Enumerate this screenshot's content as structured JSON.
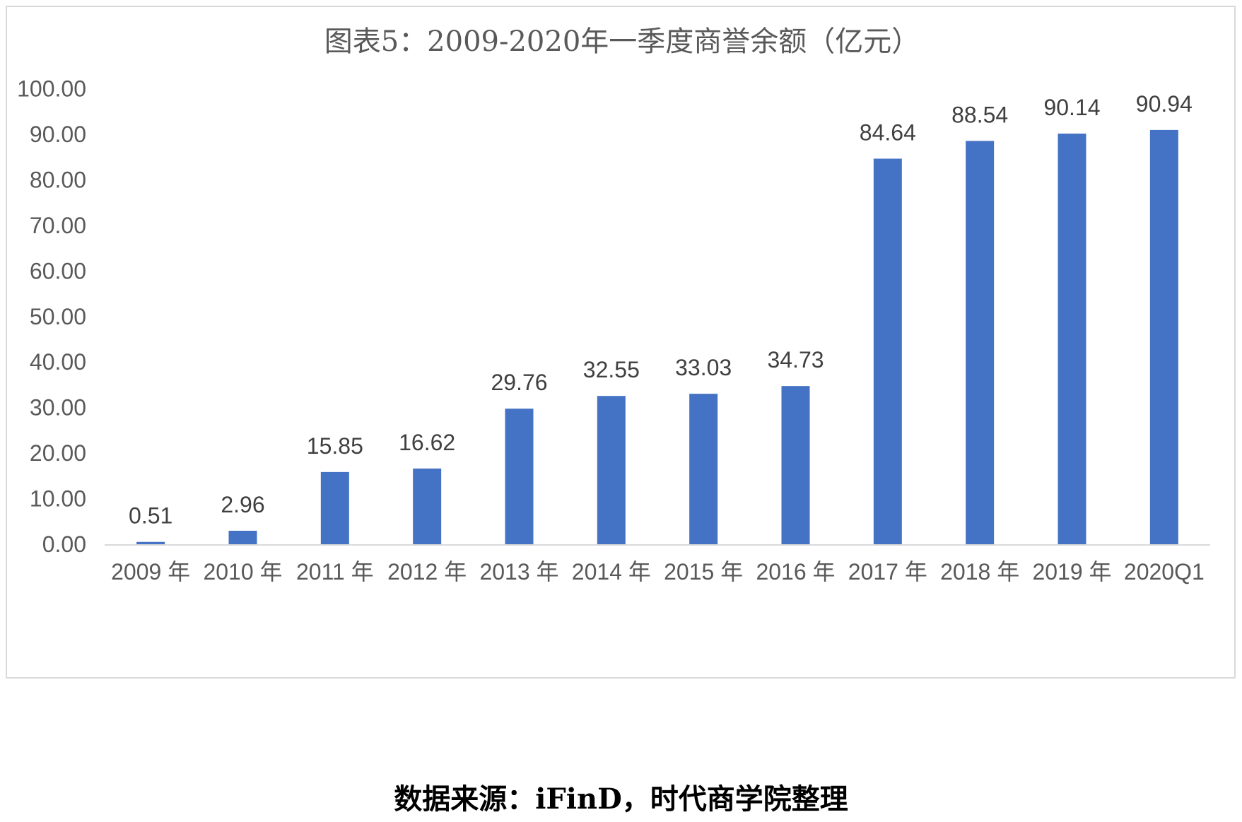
{
  "source_note": "数据来源：iFinD，时代商学院整理",
  "colors": {
    "bar": "#4472c4",
    "axis": "#d9d9d9",
    "text": "#595959",
    "data_label": "#404040",
    "frame_border": "#d9d9d9"
  },
  "chart_data": {
    "type": "bar",
    "title": "图表5：2009-2020年一季度商誉余额（亿元）",
    "categories": [
      "2009 年",
      "2010 年",
      "2011 年",
      "2012 年",
      "2013 年",
      "2014 年",
      "2015 年",
      "2016 年",
      "2017 年",
      "2018 年",
      "2019 年",
      "2020Q1"
    ],
    "values": [
      0.51,
      2.96,
      15.85,
      16.62,
      29.76,
      32.55,
      33.03,
      34.73,
      84.64,
      88.54,
      90.14,
      90.94
    ],
    "value_labels": [
      "0.51",
      "2.96",
      "15.85",
      "16.62",
      "29.76",
      "32.55",
      "33.03",
      "34.73",
      "84.64",
      "88.54",
      "90.14",
      "90.94"
    ],
    "y_ticks": [
      "0.00",
      "10.00",
      "20.00",
      "30.00",
      "40.00",
      "50.00",
      "60.00",
      "70.00",
      "80.00",
      "90.00",
      "100.00"
    ],
    "ylim": [
      0,
      100
    ],
    "xlabel": "",
    "ylabel": "",
    "grid": false,
    "legend": "none"
  }
}
